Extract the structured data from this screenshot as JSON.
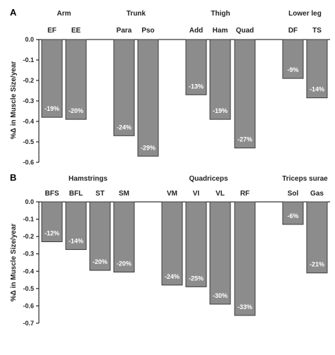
{
  "chart_data": [
    {
      "type": "bar",
      "panel": "A",
      "ylabel": "%Δ in Muscle Size/year",
      "ylim": [
        -0.6,
        0.0
      ],
      "yticks": [
        "0.0",
        "-0.1",
        "-0.2",
        "-0.3",
        "-0.4",
        "-0.5",
        "-0.6"
      ],
      "groups": [
        {
          "name": "Arm",
          "categories": [
            "EF",
            "EE"
          ]
        },
        {
          "name": "Trunk",
          "categories": [
            "Para",
            "Pso"
          ]
        },
        {
          "name": "Thigh",
          "categories": [
            "Add",
            "Ham",
            "Quad"
          ]
        },
        {
          "name": "Lower leg",
          "categories": [
            "DF",
            "TS"
          ]
        }
      ],
      "categories": [
        "EF",
        "EE",
        "Para",
        "Pso",
        "Add",
        "Ham",
        "Quad",
        "DF",
        "TS"
      ],
      "values": [
        -0.38,
        -0.39,
        -0.47,
        -0.57,
        -0.27,
        -0.39,
        -0.53,
        -0.19,
        -0.285
      ],
      "data_labels": [
        "-19%",
        "-20%",
        "-24%",
        "-29%",
        "-13%",
        "-19%",
        "-27%",
        "-9%",
        "-14%"
      ],
      "grid": false
    },
    {
      "type": "bar",
      "panel": "B",
      "ylabel": "%Δ in Muscle Size/year",
      "ylim": [
        -0.7,
        0.0
      ],
      "yticks": [
        "0.0",
        "-0.1",
        "-0.2",
        "-0.3",
        "-0.4",
        "-0.5",
        "-0.6",
        "-0.7"
      ],
      "groups": [
        {
          "name": "Hamstrings",
          "categories": [
            "BFS",
            "BFL",
            "ST",
            "SM"
          ]
        },
        {
          "name": "Quadriceps",
          "categories": [
            "VM",
            "VI",
            "VL",
            "RF"
          ]
        },
        {
          "name": "Triceps surae",
          "categories": [
            "Sol",
            "Gas"
          ]
        }
      ],
      "categories": [
        "BFS",
        "BFL",
        "ST",
        "SM",
        "VM",
        "VI",
        "VL",
        "RF",
        "Sol",
        "Gas"
      ],
      "values": [
        -0.23,
        -0.275,
        -0.395,
        -0.405,
        -0.48,
        -0.49,
        -0.59,
        -0.655,
        -0.13,
        -0.41
      ],
      "data_labels": [
        "-12%",
        "-14%",
        "-20%",
        "-20%",
        "-24%",
        "-25%",
        "-30%",
        "-33%",
        "-6%",
        "-21%"
      ],
      "grid": false
    }
  ]
}
